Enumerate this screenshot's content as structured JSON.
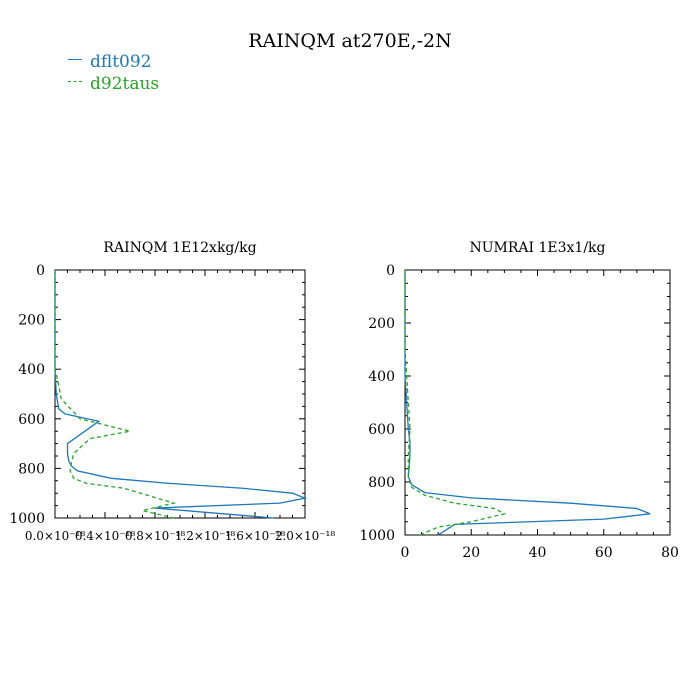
{
  "title": "RAINQM at270E,-2N",
  "colors": {
    "dflt092": "#1f77b4",
    "d92taus": "#2ca02c"
  },
  "legend": [
    {
      "label": "dflt092",
      "color": "#1f77b4",
      "style": "solid"
    },
    {
      "label": "d92taus",
      "color": "#2ca02c",
      "style": "dashed"
    }
  ],
  "chart_data": [
    {
      "type": "line",
      "title": "RAINQM  1E12xkg/kg",
      "xlabel": "",
      "ylabel": "",
      "xlim": [
        0.0,
        2e-18
      ],
      "ylim": [
        1000,
        0
      ],
      "y_inverted": true,
      "grid": false,
      "xticks": [
        0.0,
        4e-19,
        8e-19,
        1.2e-18,
        1.6e-18,
        2e-18
      ],
      "xtick_labels": [
        "0.0×10⁻¹⁸",
        "0.4×10⁻¹⁸",
        "0.8×10⁻¹⁸",
        "1.2×10⁻¹⁸",
        "1.6×10⁻¹⁸",
        "2.0×10⁻¹⁸"
      ],
      "yticks": [
        0,
        200,
        400,
        600,
        800,
        1000
      ],
      "ytick_labels": [
        "0",
        "200",
        "400",
        "600",
        "800",
        "1000"
      ],
      "series": [
        {
          "name": "dflt092",
          "color": "#1f77b4",
          "dash": false,
          "x": [
            0,
            0,
            0,
            1e-20,
            3e-20,
            8e-20,
            3.5e-19,
            1e-19,
            1e-19,
            1.1e-19,
            1.3e-19,
            1.8e-19,
            4.5e-19,
            9e-19,
            1.5e-18,
            1.9e-18,
            2e-18,
            1.8e-18,
            8e-19,
            1.75e-18
          ],
          "y": [
            0,
            200,
            400,
            500,
            560,
            580,
            610,
            700,
            740,
            770,
            790,
            810,
            840,
            860,
            880,
            900,
            920,
            940,
            960,
            1000
          ]
        },
        {
          "name": "d92taus",
          "color": "#2ca02c",
          "dash": true,
          "x": [
            0,
            0,
            0,
            2e-20,
            5e-20,
            2e-19,
            6e-19,
            2.8e-19,
            1.5e-19,
            1.3e-19,
            1.2e-19,
            1.5e-19,
            2.5e-19,
            5.5e-19,
            9.5e-19,
            7e-19,
            9.5e-19
          ],
          "y": [
            0,
            200,
            400,
            440,
            520,
            600,
            650,
            680,
            740,
            780,
            810,
            840,
            860,
            880,
            940,
            970,
            1000
          ]
        }
      ]
    },
    {
      "type": "line",
      "title": "NUMRAI  1E3x1/kg",
      "xlabel": "",
      "ylabel": "",
      "xlim": [
        0,
        80
      ],
      "ylim": [
        1000,
        0
      ],
      "y_inverted": true,
      "grid": false,
      "xticks": [
        0,
        20,
        40,
        60,
        80
      ],
      "xtick_labels": [
        "0",
        "20",
        "40",
        "60",
        "80"
      ],
      "yticks": [
        0,
        200,
        400,
        600,
        800,
        1000
      ],
      "ytick_labels": [
        "0",
        "200",
        "400",
        "600",
        "800",
        "1000"
      ],
      "series": [
        {
          "name": "dflt092",
          "color": "#1f77b4",
          "dash": false,
          "x": [
            0,
            0,
            0,
            0.5,
            1.0,
            1.5,
            1.5,
            1.2,
            1.0,
            2.0,
            6.0,
            20.0,
            50.0,
            70.0,
            74.0,
            60.0,
            15.0,
            10.0
          ],
          "y": [
            0,
            200,
            400,
            500,
            600,
            650,
            700,
            750,
            780,
            810,
            840,
            860,
            880,
            900,
            920,
            940,
            960,
            1000
          ]
        },
        {
          "name": "d92taus",
          "color": "#2ca02c",
          "dash": true,
          "x": [
            0,
            0,
            0.5,
            1.0,
            1.5,
            1.0,
            1.0,
            2.0,
            6.0,
            15.0,
            27.0,
            30.0,
            20.0,
            10.0,
            4.5
          ],
          "y": [
            0,
            300,
            400,
            500,
            600,
            700,
            780,
            820,
            850,
            880,
            900,
            920,
            950,
            970,
            1000
          ]
        }
      ]
    }
  ]
}
